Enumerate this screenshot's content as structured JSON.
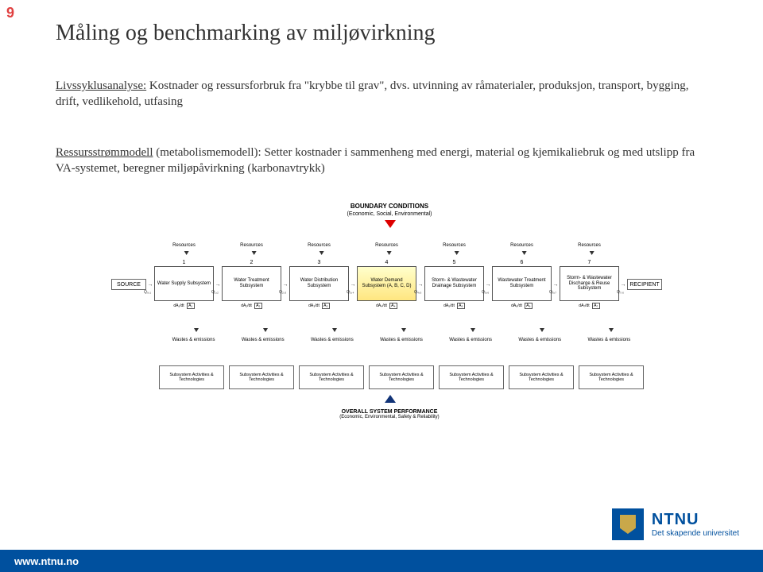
{
  "page_number": "9",
  "title": "Måling og benchmarking av miljøvirkning",
  "paragraphs": {
    "p1_label": "Livssyklusanalyse:",
    "p1_body": " Kostnader og ressursforbruk fra \"krybbe til grav\", dvs. utvinning av råmaterialer, produksjon, transport, bygging, drift, vedlikehold, utfasing",
    "p2_label": "Ressursstrømmodell",
    "p2_body": " (metabolismemodell): Setter kostnader i sammenheng med energi, material og kjemikaliebruk og med utslipp fra VA-systemet, beregner miljøpåvirkning (karbonavtrykk)"
  },
  "diagram": {
    "boundary_title": "BOUNDARY CONDITIONS",
    "boundary_sub": "(Economic, Social, Environmental)",
    "source_label": "SOURCE",
    "recipient_label": "RECIPIENT",
    "resources_label": "Resources",
    "wastes_label": "Wastes & emissions",
    "subsystem_label": "Subsystem Activities & Technologies",
    "overall_title": "OVERALL SYSTEM PERFORMANCE",
    "overall_sub": "(Economic, Environmental, Safety & Reliability)",
    "stages": [
      {
        "n": "1",
        "name": "Water Supply Subsystem",
        "q_in": "Q₀,₁",
        "da": "dA₁/dt",
        "a": "A₁",
        "special": false
      },
      {
        "n": "2",
        "name": "Water Treatment Subsystem",
        "q_in": "Q₁,₂",
        "da": "dA₂/dt",
        "a": "A₂",
        "special": false
      },
      {
        "n": "3",
        "name": "Water Distribution Subsystem",
        "q_in": "Q₂,₃",
        "da": "dA₃/dt",
        "a": "A₃",
        "special": false
      },
      {
        "n": "4",
        "name": "Water Demand Subsystem (A, B, C, D)",
        "q_in": "Q₃,₄",
        "da": "dA₄/dt",
        "a": "A₄",
        "special": true
      },
      {
        "n": "5",
        "name": "Storm- & Wastewater Drainage Subsystem",
        "q_in": "Q₄,₅",
        "da": "dA₅/dt",
        "a": "A₅",
        "special": false
      },
      {
        "n": "6",
        "name": "Wastewater Treatment Subsystem",
        "q_in": "Q₅,₆",
        "da": "dA₆/dt",
        "a": "A₆",
        "special": false
      },
      {
        "n": "7",
        "name": "Storm- & Wastewater Discharge & Reuse Subsystem",
        "q_in": "Q₆,₇",
        "da": "dA₇/dt",
        "a": "A₇",
        "special": false
      }
    ],
    "q_out": "Q₇,₀",
    "extra_q": [
      "Q₀,₅",
      "Q₃,₅",
      "Q₅,₇"
    ],
    "colors": {
      "accent_red": "#d00",
      "accent_blue": "#00509e",
      "stage4_bg": "#ffe680",
      "box_border": "#555555"
    }
  },
  "footer": {
    "url": "www.ntnu.no",
    "logo_name": "NTNU",
    "logo_tagline": "Det skapende universitet"
  }
}
